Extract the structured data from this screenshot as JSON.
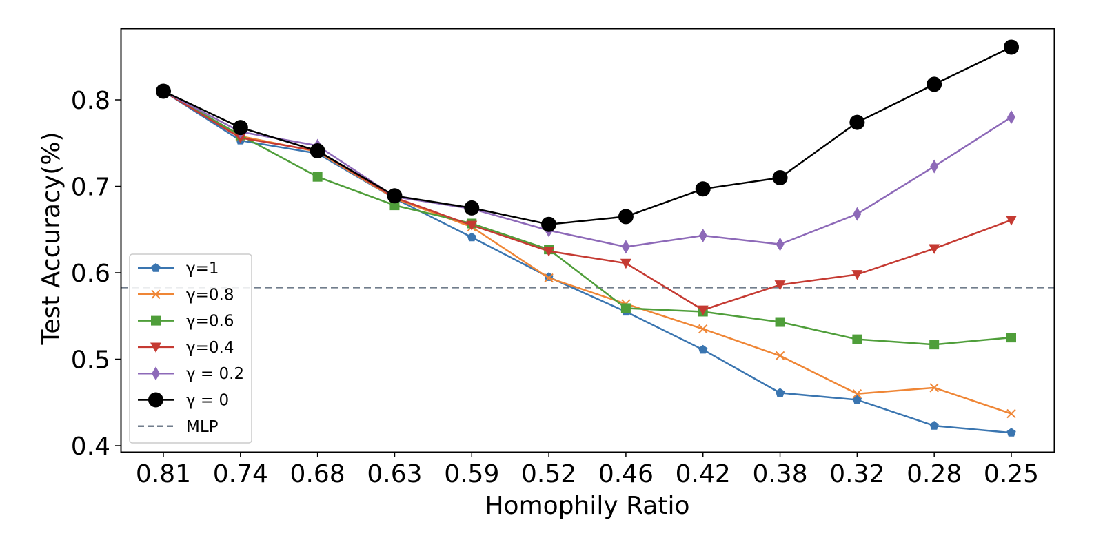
{
  "chart_data": {
    "type": "line",
    "title": "",
    "xlabel": "Homophily Ratio",
    "ylabel": "Test Accuracy(%)",
    "categories": [
      "0.81",
      "0.74",
      "0.68",
      "0.63",
      "0.59",
      "0.52",
      "0.46",
      "0.42",
      "0.38",
      "0.32",
      "0.28",
      "0.25"
    ],
    "ylim": [
      0.39,
      0.88
    ],
    "yticks": [
      0.4,
      0.5,
      0.6,
      0.7,
      0.8
    ],
    "ytick_labels": [
      "0.4",
      "0.5",
      "0.6",
      "0.7",
      "0.8"
    ],
    "grid": false,
    "legend_position": "lower left",
    "series": [
      {
        "name": "γ=1",
        "color": "#3a75b0",
        "marker": "pentagon",
        "linestyle": "solid",
        "values": [
          0.81,
          0.753,
          0.738,
          0.686,
          0.641,
          0.595,
          0.555,
          0.511,
          0.461,
          0.453,
          0.423,
          0.415
        ]
      },
      {
        "name": "γ=0.8",
        "color": "#ef8636",
        "marker": "x",
        "linestyle": "solid",
        "values": [
          0.81,
          0.758,
          0.74,
          0.686,
          0.653,
          0.594,
          0.564,
          0.535,
          0.504,
          0.46,
          0.467,
          0.437
        ]
      },
      {
        "name": "γ=0.6",
        "color": "#4f9e3a",
        "marker": "square",
        "linestyle": "solid",
        "values": [
          0.81,
          0.759,
          0.711,
          0.678,
          0.657,
          0.627,
          0.559,
          0.555,
          0.543,
          0.523,
          0.517,
          0.525
        ]
      },
      {
        "name": "γ=0.4",
        "color": "#c53a32",
        "marker": "triangle-down",
        "linestyle": "solid",
        "values": [
          0.81,
          0.756,
          0.741,
          0.687,
          0.655,
          0.625,
          0.611,
          0.557,
          0.586,
          0.598,
          0.628,
          0.661
        ]
      },
      {
        "name": "γ = 0.2",
        "color": "#8d69b8",
        "marker": "thin-diamond",
        "linestyle": "solid",
        "values": [
          0.81,
          0.763,
          0.747,
          0.688,
          0.674,
          0.649,
          0.63,
          0.643,
          0.633,
          0.668,
          0.723,
          0.78
        ]
      },
      {
        "name": "γ = 0",
        "color": "#000000",
        "marker": "circle",
        "linestyle": "solid",
        "values": [
          0.81,
          0.768,
          0.741,
          0.689,
          0.675,
          0.656,
          0.665,
          0.697,
          0.71,
          0.774,
          0.818,
          0.861
        ]
      }
    ],
    "reference_lines": [
      {
        "name": "MLP",
        "color": "#717d8c",
        "linestyle": "dashed",
        "value": 0.583
      }
    ]
  }
}
